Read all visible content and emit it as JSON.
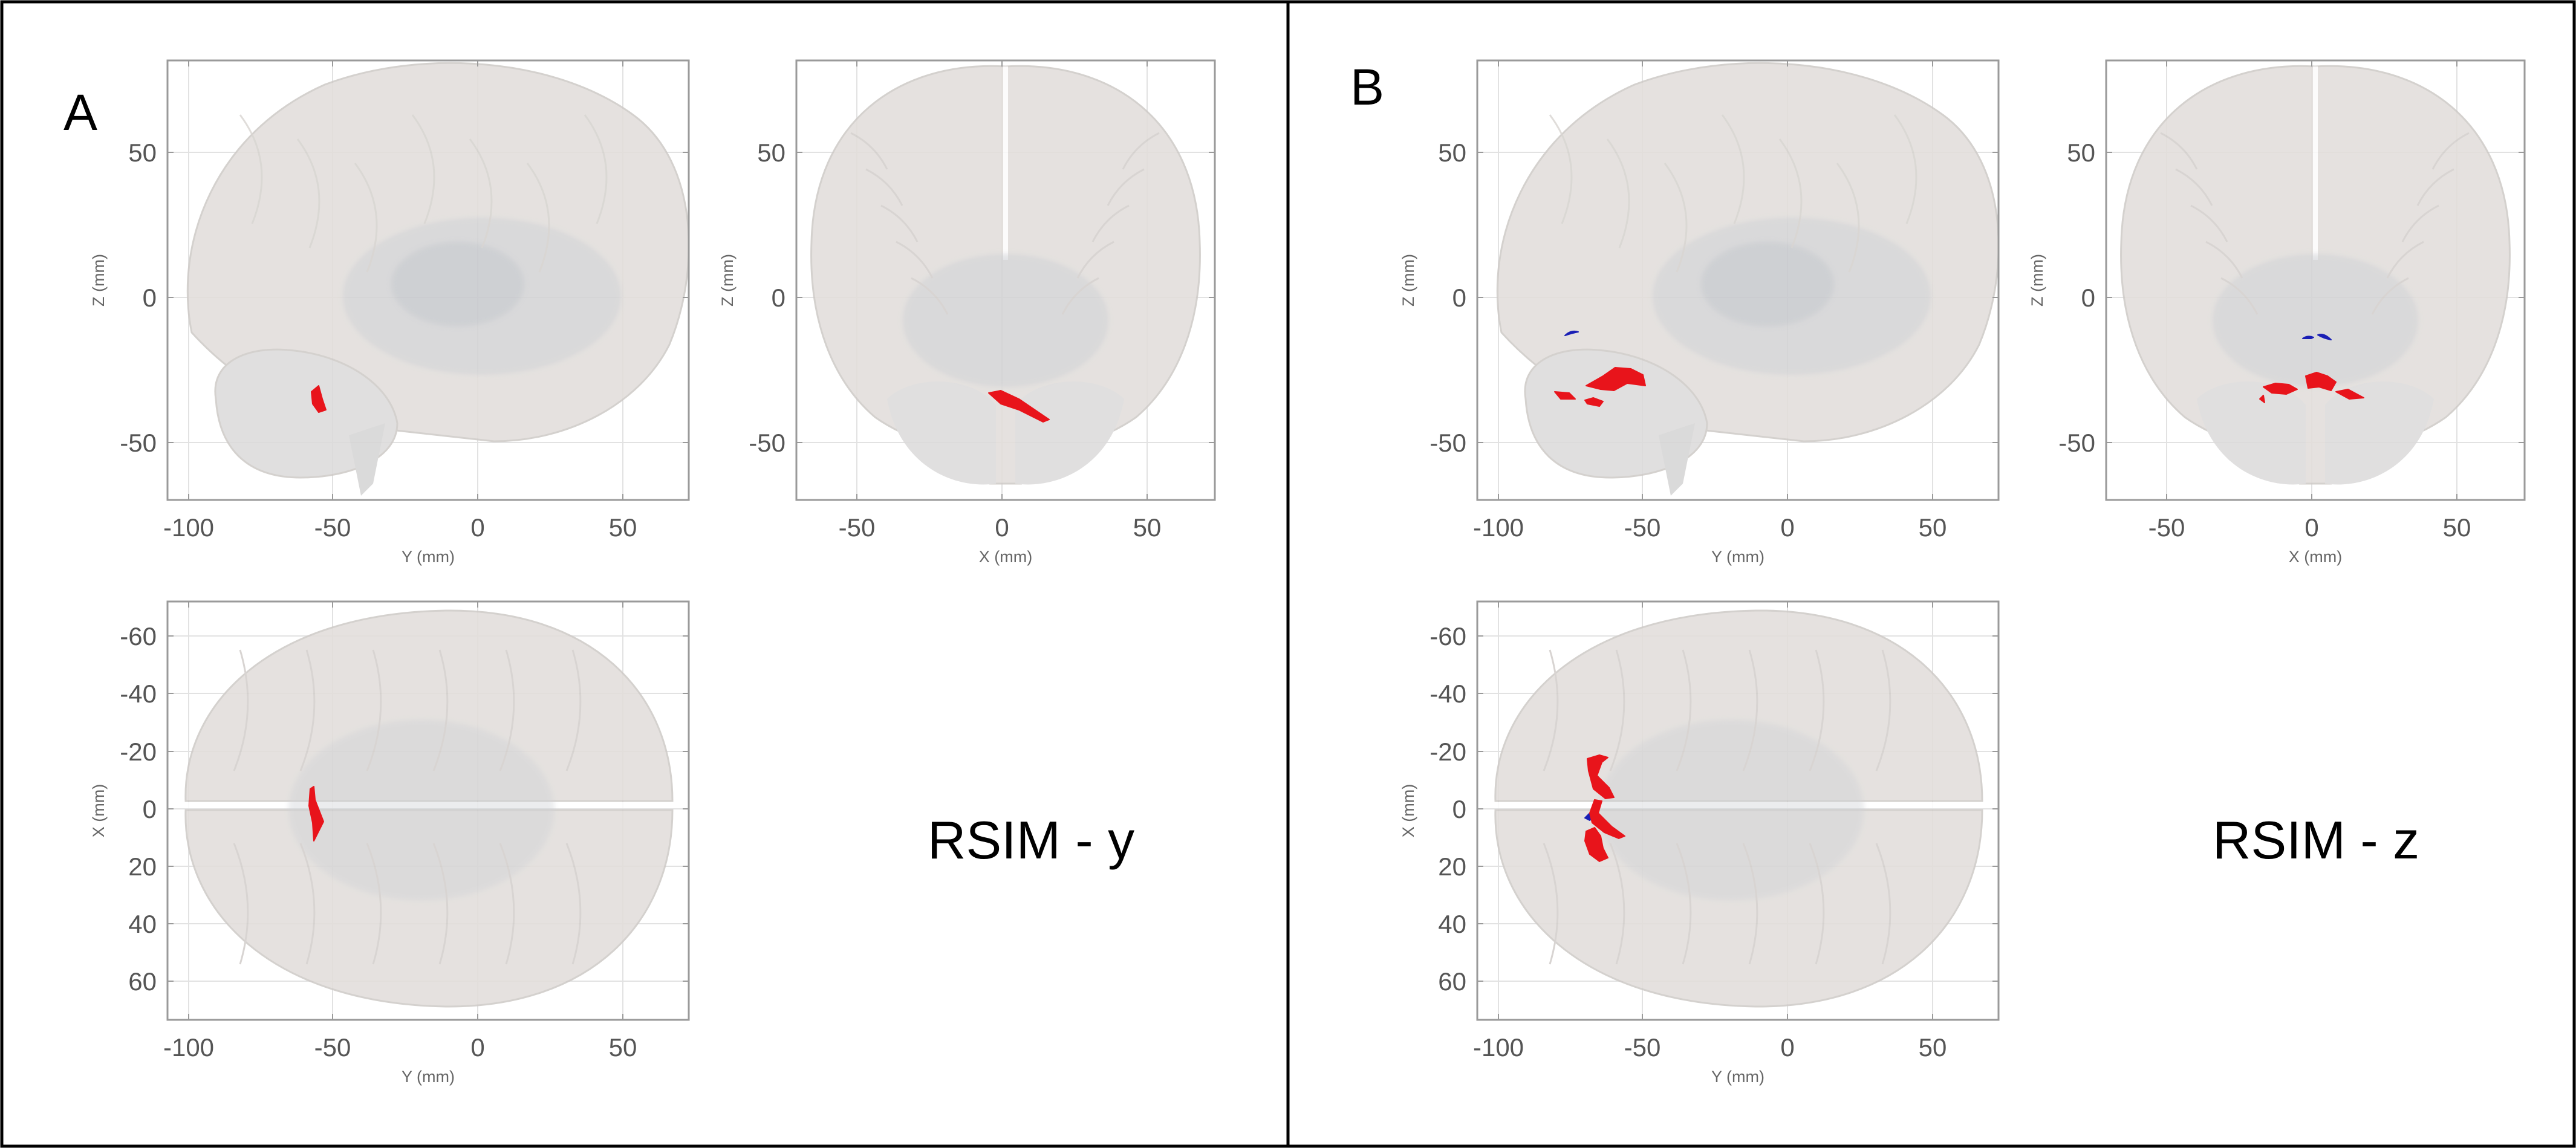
{
  "panels": [
    {
      "letter": "A",
      "caption": "RSIM - y",
      "views": {
        "sagittal": {
          "xlabel": "Y (mm)",
          "ylabel": "Z (mm)",
          "xticks": [
            "-100",
            "-50",
            "0",
            "50"
          ],
          "yticks": [
            "50",
            "0",
            "-50"
          ]
        },
        "coronal": {
          "xlabel": "X (mm)",
          "ylabel": "Z (mm)",
          "xticks": [
            "-50",
            "0",
            "50"
          ],
          "yticks": [
            "50",
            "0",
            "-50"
          ]
        },
        "axial": {
          "xlabel": "Y (mm)",
          "ylabel": "X (mm)",
          "xticks": [
            "-100",
            "-50",
            "0",
            "50"
          ],
          "yticks": [
            "-60",
            "-40",
            "-20",
            "0",
            "20",
            "40",
            "60"
          ]
        }
      }
    },
    {
      "letter": "B",
      "caption": "RSIM - z",
      "views": {
        "sagittal": {
          "xlabel": "Y (mm)",
          "ylabel": "Z (mm)",
          "xticks": [
            "-100",
            "-50",
            "0",
            "50"
          ],
          "yticks": [
            "50",
            "0",
            "-50"
          ]
        },
        "coronal": {
          "xlabel": "X (mm)",
          "ylabel": "Z (mm)",
          "xticks": [
            "-50",
            "0",
            "50"
          ],
          "yticks": [
            "50",
            "0",
            "-50"
          ]
        },
        "axial": {
          "xlabel": "Y (mm)",
          "ylabel": "X (mm)",
          "xticks": [
            "-100",
            "-50",
            "0",
            "50"
          ],
          "yticks": [
            "-60",
            "-40",
            "-20",
            "0",
            "20",
            "40",
            "60"
          ]
        }
      }
    }
  ],
  "colors": {
    "positive": "#e8141b",
    "negative": "#1a1fb5",
    "brain": "#e2dedb",
    "brain_dark": "#cfcbc8",
    "deep": "#c9ccd1",
    "axis": "#9a9a9a",
    "grid": "#e2e2e2"
  }
}
